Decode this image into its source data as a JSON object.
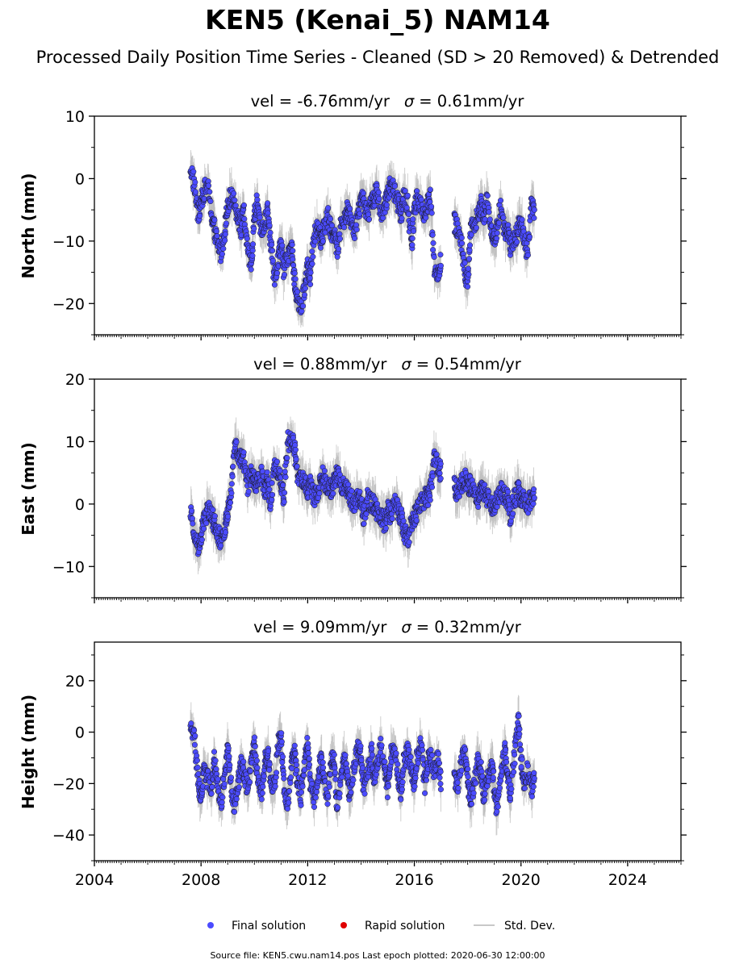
{
  "figure": {
    "title": "KEN5 (Kenai_5) NAM14",
    "subtitle": "Processed Daily Position Time Series - Cleaned (SD > 20 Removed) & Detrended",
    "source": "Source file: KEN5.cwu.nam14.pos  Last epoch plotted: 2020-06-30 12:00:00"
  },
  "legend": {
    "position": "bottom-center",
    "items": [
      {
        "label": "Final solution",
        "color": "#4b4bff",
        "kind": "dot"
      },
      {
        "label": "Rapid solution",
        "color": "#e00000",
        "kind": "dot"
      },
      {
        "label": "Std. Dev.",
        "color": "#c8c8c8",
        "kind": "line"
      }
    ]
  },
  "colors": {
    "final": "#4b4bff",
    "final_edge": "#1a1a1a",
    "rapid": "#e00000",
    "stddev": "#bdbdbd",
    "axis": "#000000"
  },
  "chart_data": [
    {
      "type": "scatter",
      "panel": "north",
      "title": "vel = -6.76mm/yr   σ = 0.61mm/yr",
      "vel_text": "vel = -6.76mm/yr",
      "sigma_text": "= 0.61mm/yr",
      "ylabel": "North (mm)",
      "xlim": [
        2004.0,
        2026.0
      ],
      "ylim": [
        -25,
        10
      ],
      "yticks": [
        10,
        0,
        -10,
        -20
      ],
      "ytick_labels": [
        "10",
        "0",
        "−10",
        "−20"
      ],
      "grid": false,
      "series": [
        {
          "name": "Final solution",
          "x": [
            2007.6,
            2007.75,
            2007.9,
            2008.0,
            2008.1,
            2008.25,
            2008.4,
            2008.5,
            2008.6,
            2008.75,
            2008.9,
            2009.0,
            2009.1,
            2009.25,
            2009.4,
            2009.5,
            2009.6,
            2009.75,
            2009.9,
            2010.0,
            2010.1,
            2010.25,
            2010.4,
            2010.5,
            2010.6,
            2010.75,
            2010.9,
            2011.0,
            2011.1,
            2011.25,
            2011.4,
            2011.5,
            2011.6,
            2011.75,
            2011.9,
            2012.0,
            2012.1,
            2012.25,
            2012.4,
            2012.5,
            2012.6,
            2012.75,
            2012.9,
            2013.0,
            2013.1,
            2013.25,
            2013.4,
            2013.5,
            2013.6,
            2013.75,
            2013.9,
            2014.0,
            2014.1,
            2014.25,
            2014.4,
            2014.5,
            2014.6,
            2014.75,
            2014.9,
            2015.0,
            2015.1,
            2015.25,
            2015.4,
            2015.5,
            2015.6,
            2015.75,
            2015.9,
            2016.0,
            2016.1,
            2016.25,
            2016.4,
            2016.5,
            2016.6,
            2016.75,
            2016.9,
            2017.0,
            2017.5,
            2017.6,
            2017.75,
            2017.9,
            2018.0,
            2018.1,
            2018.25,
            2018.4,
            2018.5,
            2018.6,
            2018.75,
            2018.9,
            2019.0,
            2019.1,
            2019.25,
            2019.4,
            2019.5,
            2019.6,
            2019.75,
            2019.9,
            2020.0,
            2020.1,
            2020.25,
            2020.4,
            2020.5
          ],
          "y": [
            2.0,
            -1.0,
            -6.0,
            -4.0,
            -2.0,
            -1.0,
            -6.0,
            -8.0,
            -10.0,
            -12.0,
            -8.0,
            -4.0,
            -3.0,
            -4.0,
            -6.0,
            -8.0,
            -5.0,
            -12.0,
            -14.0,
            -6.0,
            -4.0,
            -9.0,
            -7.0,
            -5.0,
            -10.0,
            -16.0,
            -13.0,
            -10.0,
            -15.0,
            -12.0,
            -11.0,
            -16.0,
            -19.0,
            -21.0,
            -17.0,
            -14.0,
            -16.0,
            -9.0,
            -7.0,
            -10.0,
            -8.0,
            -6.0,
            -9.0,
            -8.0,
            -12.0,
            -7.0,
            -6.0,
            -5.0,
            -6.0,
            -9.0,
            -5.0,
            -4.0,
            -3.0,
            -6.0,
            -3.0,
            -3.0,
            -2.0,
            -6.0,
            -4.0,
            -3.0,
            -1.0,
            -2.0,
            -4.0,
            -6.0,
            -3.0,
            -4.0,
            -11.0,
            -5.0,
            -3.0,
            -4.0,
            -6.0,
            -4.0,
            -3.0,
            -14.0,
            -16.0,
            -13.0,
            -7.0,
            -8.0,
            -10.0,
            -15.0,
            -17.0,
            -8.0,
            -7.0,
            -6.0,
            -4.0,
            -6.0,
            -3.0,
            -9.0,
            -10.0,
            -8.0,
            -4.0,
            -9.0,
            -8.0,
            -11.0,
            -10.0,
            -8.0,
            -7.0,
            -9.0,
            -12.0,
            -4.0,
            -5.0
          ]
        },
        {
          "name": "Rapid solution",
          "x": [],
          "y": []
        }
      ]
    },
    {
      "type": "scatter",
      "panel": "east",
      "title": "vel = 0.88mm/yr   σ = 0.54mm/yr",
      "vel_text": "vel = 0.88mm/yr",
      "sigma_text": "= 0.54mm/yr",
      "ylabel": "East (mm)",
      "xlim": [
        2004.0,
        2026.0
      ],
      "ylim": [
        -15,
        20
      ],
      "yticks": [
        20,
        10,
        0,
        -10
      ],
      "ytick_labels": [
        "20",
        "10",
        "0",
        "−10"
      ],
      "grid": false,
      "series": [
        {
          "name": "Final solution",
          "x": [
            2007.6,
            2007.75,
            2007.9,
            2008.0,
            2008.1,
            2008.25,
            2008.4,
            2008.5,
            2008.6,
            2008.75,
            2008.9,
            2009.0,
            2009.1,
            2009.25,
            2009.4,
            2009.5,
            2009.6,
            2009.75,
            2009.9,
            2010.0,
            2010.1,
            2010.25,
            2010.4,
            2010.5,
            2010.6,
            2010.75,
            2010.9,
            2011.0,
            2011.1,
            2011.25,
            2011.4,
            2011.5,
            2011.6,
            2011.75,
            2011.9,
            2012.0,
            2012.1,
            2012.25,
            2012.4,
            2012.5,
            2012.6,
            2012.75,
            2012.9,
            2013.0,
            2013.1,
            2013.25,
            2013.4,
            2013.5,
            2013.6,
            2013.75,
            2013.9,
            2014.0,
            2014.1,
            2014.25,
            2014.4,
            2014.5,
            2014.6,
            2014.75,
            2014.9,
            2015.0,
            2015.1,
            2015.25,
            2015.4,
            2015.5,
            2015.6,
            2015.75,
            2015.9,
            2016.0,
            2016.1,
            2016.25,
            2016.4,
            2016.5,
            2016.6,
            2016.75,
            2016.9,
            2017.0,
            2017.5,
            2017.6,
            2017.75,
            2017.9,
            2018.0,
            2018.1,
            2018.25,
            2018.4,
            2018.5,
            2018.6,
            2018.75,
            2018.9,
            2019.0,
            2019.1,
            2019.25,
            2019.4,
            2019.5,
            2019.6,
            2019.75,
            2019.9,
            2020.0,
            2020.1,
            2020.25,
            2020.4,
            2020.5
          ],
          "y": [
            -1.0,
            -5.0,
            -7.0,
            -5.0,
            -3.0,
            -1.0,
            -2.0,
            -3.0,
            -4.0,
            -6.0,
            -4.0,
            -1.0,
            1.0,
            9.0,
            8.0,
            7.0,
            7.0,
            3.0,
            5.0,
            4.0,
            3.0,
            5.0,
            2.0,
            4.0,
            0.0,
            6.0,
            5.0,
            3.0,
            1.0,
            10.0,
            10.0,
            9.0,
            5.0,
            4.0,
            4.0,
            2.0,
            3.0,
            1.0,
            2.0,
            5.0,
            4.0,
            3.0,
            2.0,
            4.0,
            5.0,
            3.0,
            3.0,
            2.0,
            1.0,
            0.0,
            1.0,
            1.0,
            -2.0,
            1.0,
            0.0,
            0.0,
            -1.0,
            -2.0,
            -3.0,
            -1.0,
            -2.0,
            0.0,
            -1.0,
            -2.0,
            -4.0,
            -6.0,
            -3.0,
            -2.0,
            -1.0,
            0.0,
            1.0,
            1.0,
            2.0,
            7.0,
            6.0,
            5.0,
            3.0,
            2.0,
            3.0,
            4.0,
            3.0,
            3.0,
            2.0,
            1.0,
            3.0,
            2.0,
            1.0,
            0.0,
            -1.0,
            1.0,
            2.0,
            1.0,
            1.0,
            -2.0,
            1.0,
            2.0,
            1.0,
            1.0,
            0.0,
            1.0,
            1.0
          ]
        },
        {
          "name": "Rapid solution",
          "x": [],
          "y": []
        }
      ]
    },
    {
      "type": "scatter",
      "panel": "height",
      "title": "vel = 9.09mm/yr   σ = 0.32mm/yr",
      "vel_text": "vel = 9.09mm/yr",
      "sigma_text": "= 0.32mm/yr",
      "ylabel": "Height (mm)",
      "xlim": [
        2004.0,
        2026.0
      ],
      "ylim": [
        -50,
        35
      ],
      "yticks": [
        20,
        0,
        -20,
        -40
      ],
      "ytick_labels": [
        "20",
        "0",
        "−20",
        "−40"
      ],
      "grid": false,
      "xticks": [
        2004,
        2008,
        2012,
        2016,
        2020,
        2024
      ],
      "xtick_labels": [
        "2004",
        "2008",
        "2012",
        "2016",
        "2020",
        "2024"
      ],
      "series": [
        {
          "name": "Final solution",
          "x": [
            2007.6,
            2007.75,
            2007.9,
            2008.0,
            2008.1,
            2008.25,
            2008.4,
            2008.5,
            2008.6,
            2008.75,
            2008.9,
            2009.0,
            2009.1,
            2009.25,
            2009.4,
            2009.5,
            2009.6,
            2009.75,
            2009.9,
            2010.0,
            2010.1,
            2010.25,
            2010.4,
            2010.5,
            2010.6,
            2010.75,
            2010.9,
            2011.0,
            2011.1,
            2011.25,
            2011.4,
            2011.5,
            2011.6,
            2011.75,
            2011.9,
            2012.0,
            2012.1,
            2012.25,
            2012.4,
            2012.5,
            2012.6,
            2012.75,
            2012.9,
            2013.0,
            2013.1,
            2013.25,
            2013.4,
            2013.5,
            2013.6,
            2013.75,
            2013.9,
            2014.0,
            2014.1,
            2014.25,
            2014.4,
            2014.5,
            2014.6,
            2014.75,
            2014.9,
            2015.0,
            2015.1,
            2015.25,
            2015.4,
            2015.5,
            2015.6,
            2015.75,
            2015.9,
            2016.0,
            2016.1,
            2016.25,
            2016.4,
            2016.5,
            2016.6,
            2016.75,
            2016.9,
            2017.0,
            2017.5,
            2017.6,
            2017.75,
            2017.9,
            2018.0,
            2018.1,
            2018.25,
            2018.4,
            2018.5,
            2018.6,
            2018.75,
            2018.9,
            2019.0,
            2019.1,
            2019.25,
            2019.4,
            2019.5,
            2019.6,
            2019.75,
            2019.9,
            2020.0,
            2020.1,
            2020.25,
            2020.4,
            2020.5
          ],
          "y": [
            5.0,
            -2.0,
            -20.0,
            -25.0,
            -15.0,
            -18.0,
            -22.0,
            -10.0,
            -20.0,
            -28.0,
            -15.0,
            -5.0,
            -18.0,
            -30.0,
            -20.0,
            -12.0,
            -15.0,
            -22.0,
            -10.0,
            -5.0,
            -15.0,
            -25.0,
            -10.0,
            -8.0,
            -18.0,
            -22.0,
            -5.0,
            0.0,
            -20.0,
            -28.0,
            -12.0,
            -8.0,
            -18.0,
            -25.0,
            -10.0,
            -5.0,
            -20.0,
            -28.0,
            -15.0,
            -10.0,
            -18.0,
            -25.0,
            -10.0,
            -12.0,
            -30.0,
            -18.0,
            -10.0,
            -20.0,
            -25.0,
            -12.0,
            -5.0,
            -10.0,
            -22.0,
            -15.0,
            -8.0,
            -18.0,
            -12.0,
            -5.0,
            -15.0,
            -22.0,
            -10.0,
            -5.0,
            -18.0,
            -25.0,
            -12.0,
            -8.0,
            -15.0,
            -20.0,
            -10.0,
            -5.0,
            -20.0,
            -12.0,
            -8.0,
            -15.0,
            -10.0,
            -20.0,
            -18.0,
            -22.0,
            -12.0,
            -8.0,
            -18.0,
            -28.0,
            -20.0,
            -10.0,
            -15.0,
            -25.0,
            -18.0,
            -10.0,
            -22.0,
            -30.0,
            -15.0,
            -8.0,
            -18.0,
            -25.0,
            -10.0,
            5.0,
            -10.0,
            -20.0,
            -15.0,
            -22.0,
            -18.0
          ]
        },
        {
          "name": "Rapid solution",
          "x": [],
          "y": []
        }
      ]
    }
  ]
}
